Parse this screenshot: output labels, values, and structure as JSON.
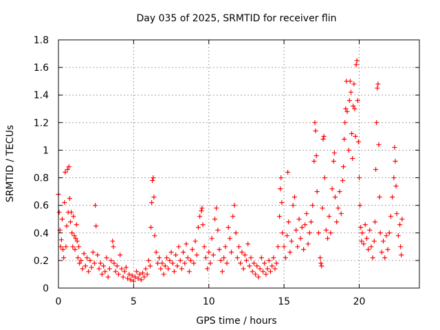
{
  "chart_data": {
    "type": "scatter",
    "title": "Day 035 of 2025, SRMTID for receiver flin",
    "xlabel": "GPS time / hours",
    "ylabel": "SRMTID / TECUs",
    "xlim": [
      0,
      24
    ],
    "ylim": [
      0,
      1.8
    ],
    "xticks": [
      {
        "value": 0,
        "label": "0"
      },
      {
        "value": 5,
        "label": "5"
      },
      {
        "value": 10,
        "label": "10"
      },
      {
        "value": 15,
        "label": "15"
      },
      {
        "value": 20,
        "label": "20"
      }
    ],
    "yticks": [
      {
        "value": 0,
        "label": "0"
      },
      {
        "value": 0.2,
        "label": "0.2"
      },
      {
        "value": 0.4,
        "label": "0.4"
      },
      {
        "value": 0.6,
        "label": "0.6"
      },
      {
        "value": 0.8,
        "label": "0.8"
      },
      {
        "value": 1.0,
        "label": "1"
      },
      {
        "value": 1.2,
        "label": "1.2"
      },
      {
        "value": 1.4,
        "label": "1.4"
      },
      {
        "value": 1.6,
        "label": "1.6"
      },
      {
        "value": 1.8,
        "label": "1.8"
      }
    ],
    "grid": true,
    "marker": "+",
    "marker_color": "#ff0000",
    "series": [
      {
        "name": "SRMTID",
        "points": [
          [
            0.0,
            0.68
          ],
          [
            0.05,
            0.55
          ],
          [
            0.1,
            0.42
          ],
          [
            0.15,
            0.3
          ],
          [
            0.2,
            0.35
          ],
          [
            0.25,
            0.5
          ],
          [
            0.3,
            0.28
          ],
          [
            0.35,
            0.22
          ],
          [
            0.4,
            0.62
          ],
          [
            0.45,
            0.84
          ],
          [
            0.5,
            0.3
          ],
          [
            0.55,
            0.45
          ],
          [
            0.6,
            0.86
          ],
          [
            0.65,
            0.55
          ],
          [
            0.7,
            0.88
          ],
          [
            0.75,
            0.65
          ],
          [
            0.8,
            0.48
          ],
          [
            0.85,
            0.55
          ],
          [
            0.9,
            0.4
          ],
          [
            0.95,
            0.3
          ],
          [
            1.0,
            0.52
          ],
          [
            1.05,
            0.38
          ],
          [
            1.1,
            0.28
          ],
          [
            1.15,
            0.36
          ],
          [
            1.2,
            0.46
          ],
          [
            1.25,
            0.34
          ],
          [
            1.3,
            0.22
          ],
          [
            1.35,
            0.3
          ],
          [
            1.4,
            0.18
          ],
          [
            1.5,
            0.2
          ],
          [
            1.6,
            0.14
          ],
          [
            1.7,
            0.25
          ],
          [
            1.8,
            0.16
          ],
          [
            1.9,
            0.22
          ],
          [
            2.0,
            0.12
          ],
          [
            2.1,
            0.2
          ],
          [
            2.2,
            0.15
          ],
          [
            2.3,
            0.26
          ],
          [
            2.4,
            0.18
          ],
          [
            2.45,
            0.6
          ],
          [
            2.5,
            0.45
          ],
          [
            2.6,
            0.24
          ],
          [
            2.7,
            0.14
          ],
          [
            2.8,
            0.18
          ],
          [
            2.9,
            0.1
          ],
          [
            3.0,
            0.16
          ],
          [
            3.1,
            0.12
          ],
          [
            3.2,
            0.22
          ],
          [
            3.3,
            0.08
          ],
          [
            3.4,
            0.14
          ],
          [
            3.5,
            0.2
          ],
          [
            3.6,
            0.34
          ],
          [
            3.65,
            0.3
          ],
          [
            3.7,
            0.18
          ],
          [
            3.8,
            0.12
          ],
          [
            3.9,
            0.16
          ],
          [
            4.0,
            0.1
          ],
          [
            4.1,
            0.24
          ],
          [
            4.2,
            0.14
          ],
          [
            4.3,
            0.08
          ],
          [
            4.4,
            0.12
          ],
          [
            4.5,
            0.15
          ],
          [
            4.6,
            0.07
          ],
          [
            4.7,
            0.1
          ],
          [
            4.8,
            0.06
          ],
          [
            4.9,
            0.09
          ],
          [
            5.0,
            0.05
          ],
          [
            5.1,
            0.08
          ],
          [
            5.2,
            0.12
          ],
          [
            5.3,
            0.07
          ],
          [
            5.4,
            0.1
          ],
          [
            5.5,
            0.06
          ],
          [
            5.6,
            0.11
          ],
          [
            5.7,
            0.08
          ],
          [
            5.8,
            0.14
          ],
          [
            5.9,
            0.1
          ],
          [
            6.0,
            0.2
          ],
          [
            6.1,
            0.16
          ],
          [
            6.15,
            0.44
          ],
          [
            6.2,
            0.62
          ],
          [
            6.25,
            0.78
          ],
          [
            6.3,
            0.8
          ],
          [
            6.35,
            0.66
          ],
          [
            6.4,
            0.38
          ],
          [
            6.5,
            0.26
          ],
          [
            6.6,
            0.18
          ],
          [
            6.7,
            0.22
          ],
          [
            6.8,
            0.14
          ],
          [
            6.9,
            0.18
          ],
          [
            7.0,
            0.1
          ],
          [
            7.1,
            0.16
          ],
          [
            7.2,
            0.22
          ],
          [
            7.3,
            0.14
          ],
          [
            7.4,
            0.2
          ],
          [
            7.5,
            0.26
          ],
          [
            7.6,
            0.18
          ],
          [
            7.7,
            0.12
          ],
          [
            7.8,
            0.24
          ],
          [
            7.9,
            0.16
          ],
          [
            8.0,
            0.3
          ],
          [
            8.1,
            0.2
          ],
          [
            8.2,
            0.14
          ],
          [
            8.3,
            0.26
          ],
          [
            8.4,
            0.18
          ],
          [
            8.5,
            0.32
          ],
          [
            8.6,
            0.22
          ],
          [
            8.7,
            0.12
          ],
          [
            8.8,
            0.2
          ],
          [
            8.9,
            0.28
          ],
          [
            9.0,
            0.18
          ],
          [
            9.1,
            0.34
          ],
          [
            9.2,
            0.24
          ],
          [
            9.3,
            0.44
          ],
          [
            9.4,
            0.52
          ],
          [
            9.5,
            0.56
          ],
          [
            9.55,
            0.58
          ],
          [
            9.6,
            0.46
          ],
          [
            9.7,
            0.3
          ],
          [
            9.8,
            0.22
          ],
          [
            9.9,
            0.14
          ],
          [
            10.0,
            0.26
          ],
          [
            10.1,
            0.18
          ],
          [
            10.2,
            0.36
          ],
          [
            10.3,
            0.24
          ],
          [
            10.4,
            0.5
          ],
          [
            10.5,
            0.58
          ],
          [
            10.6,
            0.42
          ],
          [
            10.7,
            0.28
          ],
          [
            10.8,
            0.2
          ],
          [
            10.9,
            0.12
          ],
          [
            11.0,
            0.22
          ],
          [
            11.1,
            0.3
          ],
          [
            11.2,
            0.18
          ],
          [
            11.3,
            0.44
          ],
          [
            11.4,
            0.36
          ],
          [
            11.5,
            0.26
          ],
          [
            11.6,
            0.52
          ],
          [
            11.7,
            0.6
          ],
          [
            11.8,
            0.4
          ],
          [
            11.9,
            0.22
          ],
          [
            12.0,
            0.3
          ],
          [
            12.1,
            0.18
          ],
          [
            12.2,
            0.26
          ],
          [
            12.3,
            0.14
          ],
          [
            12.4,
            0.24
          ],
          [
            12.5,
            0.2
          ],
          [
            12.6,
            0.32
          ],
          [
            12.7,
            0.16
          ],
          [
            12.8,
            0.22
          ],
          [
            12.9,
            0.12
          ],
          [
            13.0,
            0.18
          ],
          [
            13.1,
            0.1
          ],
          [
            13.2,
            0.16
          ],
          [
            13.3,
            0.08
          ],
          [
            13.4,
            0.14
          ],
          [
            13.5,
            0.22
          ],
          [
            13.6,
            0.12
          ],
          [
            13.7,
            0.18
          ],
          [
            13.8,
            0.1
          ],
          [
            13.9,
            0.14
          ],
          [
            14.0,
            0.2
          ],
          [
            14.1,
            0.12
          ],
          [
            14.2,
            0.16
          ],
          [
            14.3,
            0.22
          ],
          [
            14.4,
            0.14
          ],
          [
            14.5,
            0.18
          ],
          [
            14.6,
            0.3
          ],
          [
            14.7,
            0.52
          ],
          [
            14.75,
            0.72
          ],
          [
            14.8,
            0.8
          ],
          [
            14.85,
            0.62
          ],
          [
            14.9,
            0.4
          ],
          [
            15.0,
            0.3
          ],
          [
            15.1,
            0.22
          ],
          [
            15.2,
            0.38
          ],
          [
            15.25,
            0.84
          ],
          [
            15.3,
            0.48
          ],
          [
            15.4,
            0.26
          ],
          [
            15.5,
            0.34
          ],
          [
            15.6,
            0.6
          ],
          [
            15.7,
            0.66
          ],
          [
            15.8,
            0.42
          ],
          [
            15.9,
            0.3
          ],
          [
            16.0,
            0.5
          ],
          [
            16.1,
            0.36
          ],
          [
            16.2,
            0.44
          ],
          [
            16.3,
            0.28
          ],
          [
            16.4,
            0.46
          ],
          [
            16.5,
            0.54
          ],
          [
            16.6,
            0.32
          ],
          [
            16.7,
            0.4
          ],
          [
            16.8,
            0.48
          ],
          [
            16.9,
            0.6
          ],
          [
            17.0,
            0.92
          ],
          [
            17.05,
            1.2
          ],
          [
            17.1,
            1.14
          ],
          [
            17.15,
            0.96
          ],
          [
            17.2,
            0.7
          ],
          [
            17.3,
            0.4
          ],
          [
            17.4,
            0.22
          ],
          [
            17.45,
            0.18
          ],
          [
            17.5,
            0.16
          ],
          [
            17.55,
            0.58
          ],
          [
            17.6,
            1.08
          ],
          [
            17.65,
            1.1
          ],
          [
            17.7,
            0.8
          ],
          [
            17.8,
            0.42
          ],
          [
            17.9,
            0.36
          ],
          [
            18.0,
            0.52
          ],
          [
            18.1,
            0.4
          ],
          [
            18.2,
            0.72
          ],
          [
            18.3,
            0.92
          ],
          [
            18.35,
            0.98
          ],
          [
            18.4,
            0.66
          ],
          [
            18.5,
            0.48
          ],
          [
            18.6,
            0.58
          ],
          [
            18.7,
            0.7
          ],
          [
            18.8,
            0.54
          ],
          [
            18.9,
            0.78
          ],
          [
            18.95,
            0.88
          ],
          [
            19.0,
            1.08
          ],
          [
            19.05,
            1.2
          ],
          [
            19.1,
            1.3
          ],
          [
            19.15,
            1.5
          ],
          [
            19.2,
            1.28
          ],
          [
            19.3,
            1.0
          ],
          [
            19.35,
            1.36
          ],
          [
            19.4,
            1.5
          ],
          [
            19.45,
            1.42
          ],
          [
            19.5,
            1.12
          ],
          [
            19.55,
            0.94
          ],
          [
            19.6,
            1.32
          ],
          [
            19.65,
            1.48
          ],
          [
            19.7,
            1.3
          ],
          [
            19.75,
            1.1
          ],
          [
            19.8,
            1.62
          ],
          [
            19.85,
            1.65
          ],
          [
            19.9,
            1.36
          ],
          [
            19.95,
            1.06
          ],
          [
            20.0,
            0.8
          ],
          [
            20.05,
            0.6
          ],
          [
            20.1,
            0.44
          ],
          [
            20.15,
            0.34
          ],
          [
            20.2,
            0.4
          ],
          [
            20.3,
            0.32
          ],
          [
            20.4,
            0.46
          ],
          [
            20.5,
            0.36
          ],
          [
            20.6,
            0.28
          ],
          [
            20.7,
            0.42
          ],
          [
            20.8,
            0.3
          ],
          [
            20.9,
            0.22
          ],
          [
            21.0,
            0.34
          ],
          [
            21.05,
            0.48
          ],
          [
            21.1,
            0.86
          ],
          [
            21.15,
            1.2
          ],
          [
            21.2,
            1.45
          ],
          [
            21.25,
            1.48
          ],
          [
            21.3,
            1.04
          ],
          [
            21.35,
            0.66
          ],
          [
            21.4,
            0.4
          ],
          [
            21.5,
            0.26
          ],
          [
            21.6,
            0.34
          ],
          [
            21.7,
            0.22
          ],
          [
            21.8,
            0.38
          ],
          [
            21.9,
            0.28
          ],
          [
            22.0,
            0.4
          ],
          [
            22.1,
            0.52
          ],
          [
            22.2,
            0.66
          ],
          [
            22.3,
            0.8
          ],
          [
            22.35,
            1.02
          ],
          [
            22.4,
            0.92
          ],
          [
            22.45,
            0.74
          ],
          [
            22.5,
            0.54
          ],
          [
            22.6,
            0.38
          ],
          [
            22.7,
            0.46
          ],
          [
            22.75,
            0.3
          ],
          [
            22.8,
            0.24
          ],
          [
            22.85,
            0.5
          ]
        ]
      }
    ]
  }
}
